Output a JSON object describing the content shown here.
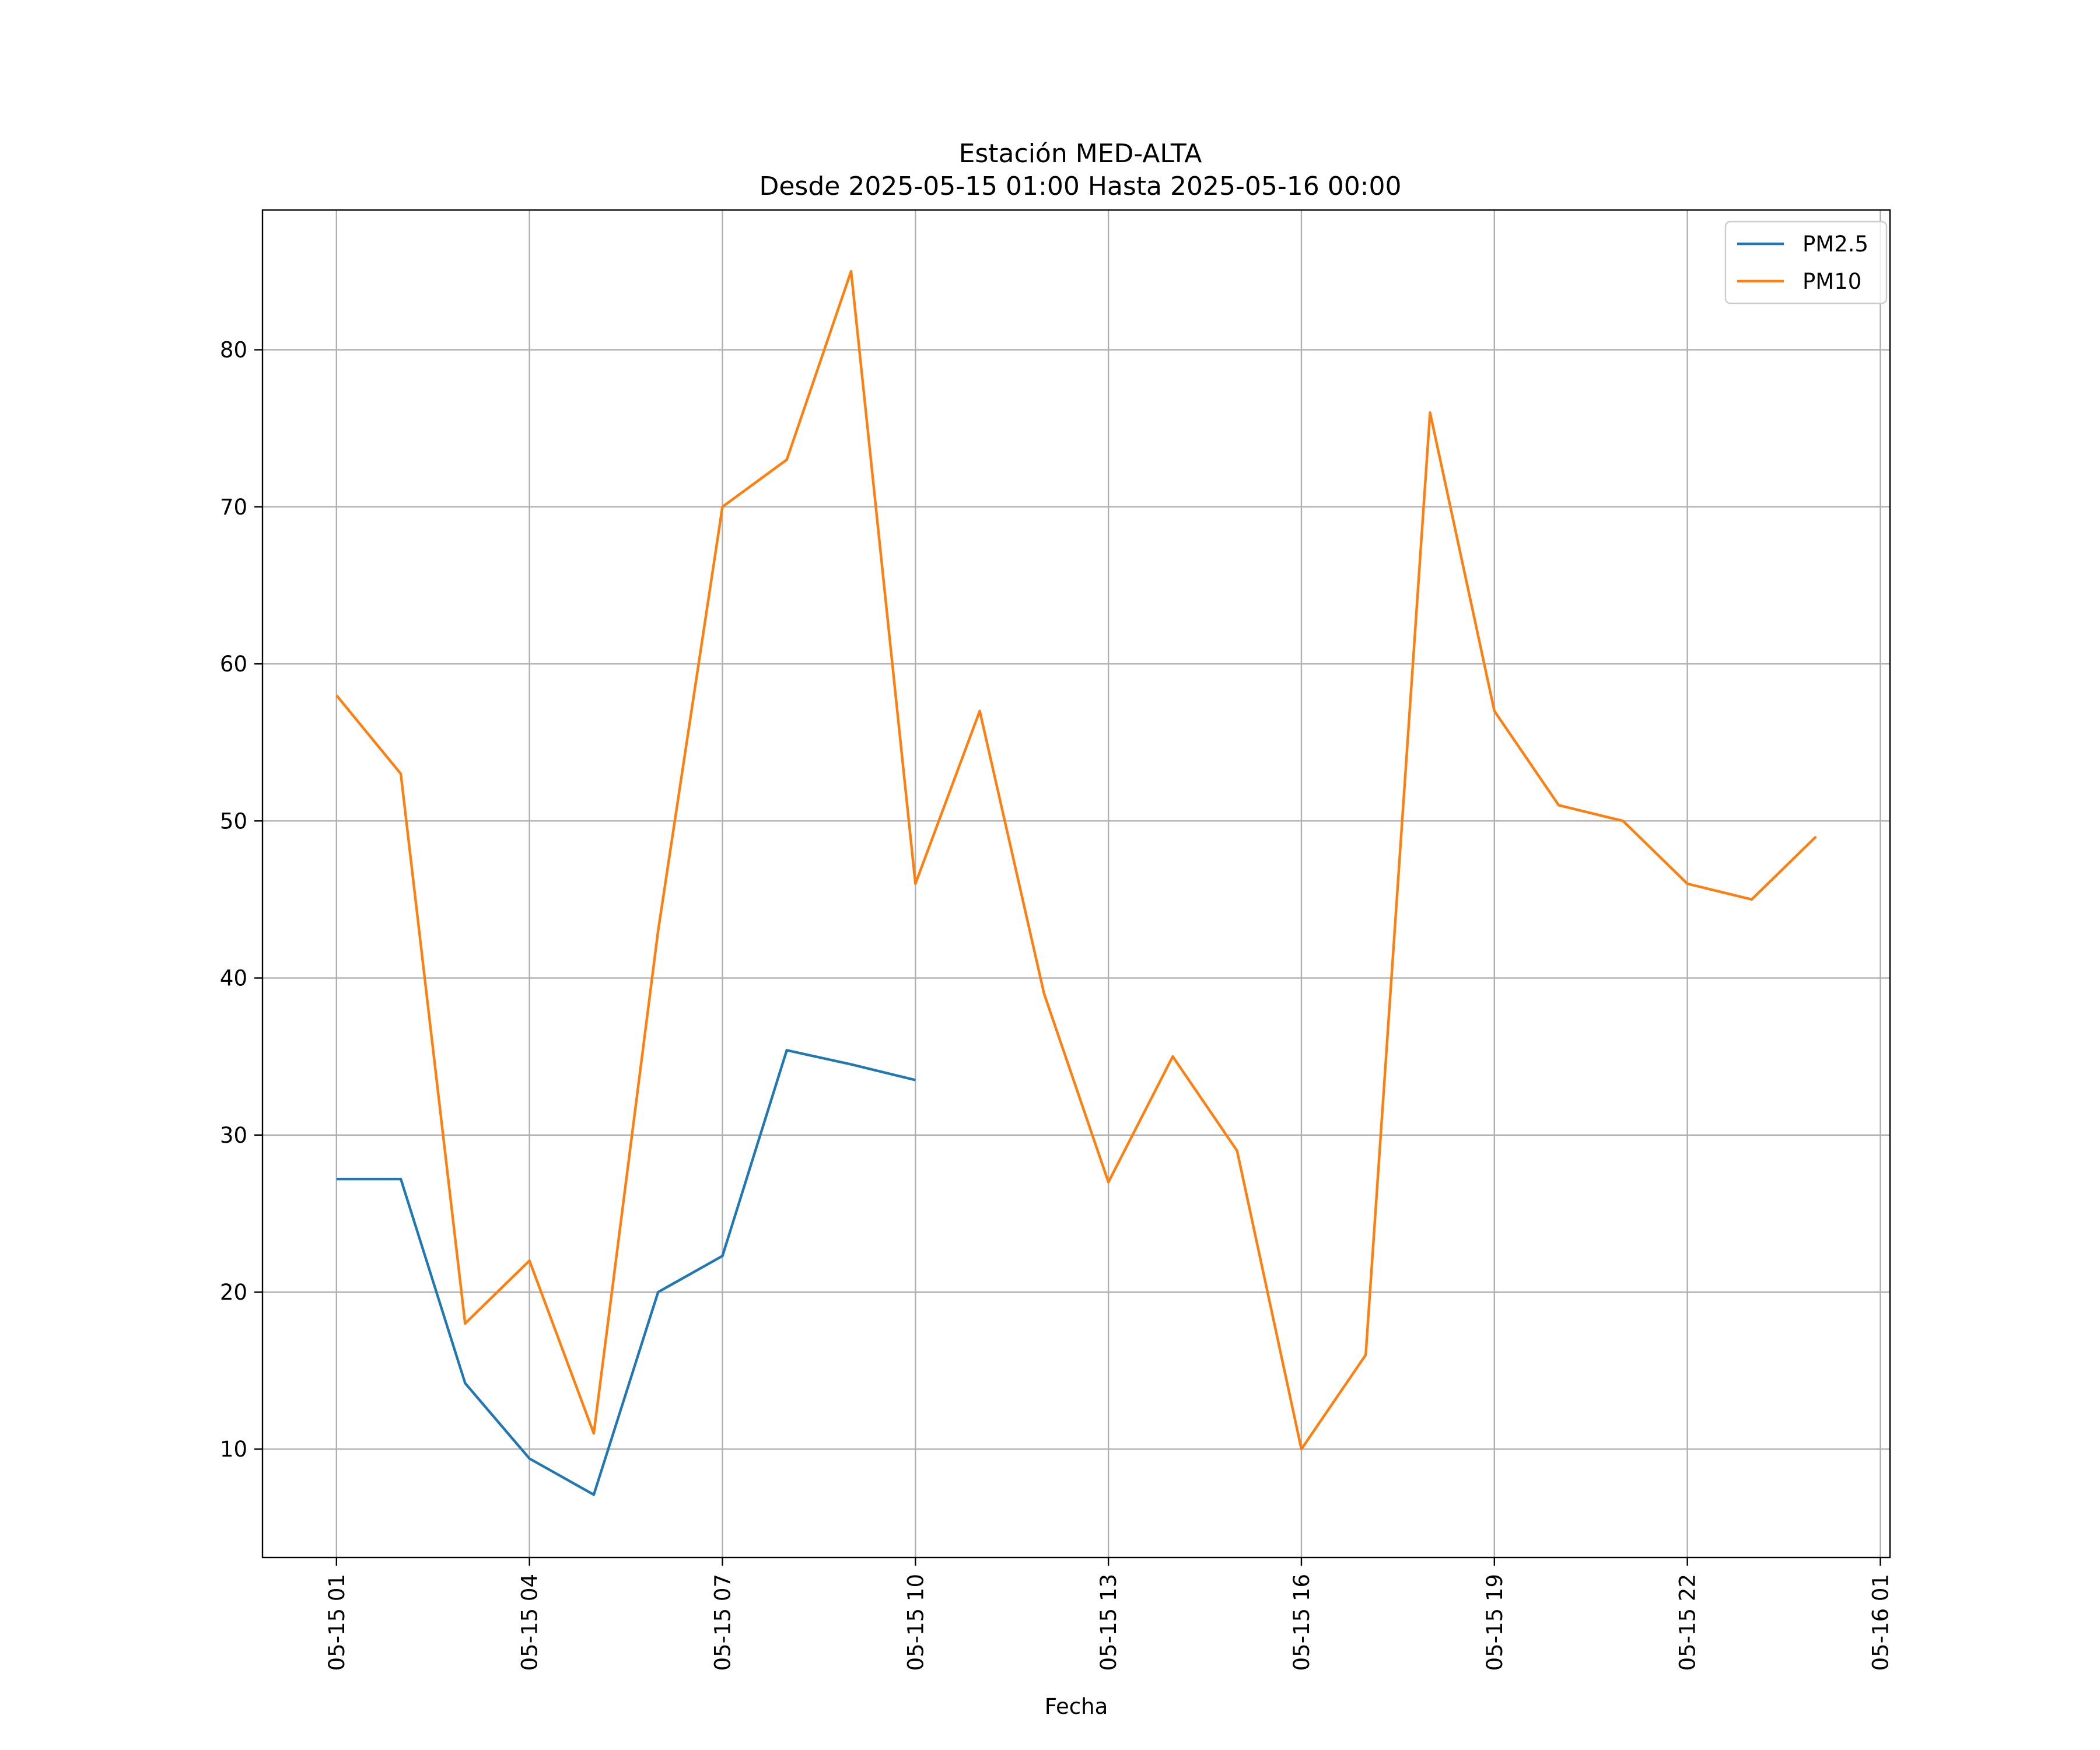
{
  "chart_data": {
    "type": "line",
    "title": "Estación MED-ALTA",
    "subtitle": "Desde 2025-05-15 01:00 Hasta 2025-05-16 00:00",
    "xlabel": "Fecha",
    "ylabel": "",
    "x": [
      "2025-05-15 01:00",
      "2025-05-15 02:00",
      "2025-05-15 03:00",
      "2025-05-15 04:00",
      "2025-05-15 05:00",
      "2025-05-15 06:00",
      "2025-05-15 07:00",
      "2025-05-15 08:00",
      "2025-05-15 09:00",
      "2025-05-15 10:00",
      "2025-05-15 11:00",
      "2025-05-15 12:00",
      "2025-05-15 13:00",
      "2025-05-15 14:00",
      "2025-05-15 15:00",
      "2025-05-15 16:00",
      "2025-05-15 17:00",
      "2025-05-15 18:00",
      "2025-05-15 19:00",
      "2025-05-15 20:00",
      "2025-05-15 21:00",
      "2025-05-15 22:00",
      "2025-05-15 23:00",
      "2025-05-16 00:00"
    ],
    "x_ticks": [
      {
        "value": "2025-05-15 01:00",
        "label": "05-15 01"
      },
      {
        "value": "2025-05-15 04:00",
        "label": "05-15 04"
      },
      {
        "value": "2025-05-15 07:00",
        "label": "05-15 07"
      },
      {
        "value": "2025-05-15 10:00",
        "label": "05-15 10"
      },
      {
        "value": "2025-05-15 13:00",
        "label": "05-15 13"
      },
      {
        "value": "2025-05-15 16:00",
        "label": "05-15 16"
      },
      {
        "value": "2025-05-15 19:00",
        "label": "05-15 19"
      },
      {
        "value": "2025-05-15 22:00",
        "label": "05-15 22"
      },
      {
        "value": "2025-05-16 01:00",
        "label": "05-16 01"
      }
    ],
    "xlim": [
      "2025-05-14 23:51",
      "2025-05-16 01:09"
    ],
    "yticks": [
      10,
      20,
      30,
      40,
      50,
      60,
      70,
      80
    ],
    "ylim": [
      3.1,
      88.9
    ],
    "grid": true,
    "legend": "top-right",
    "series": [
      {
        "name": "PM2.5",
        "color": "#1f77b4",
        "values": [
          27.2,
          27.2,
          14.2,
          9.4,
          7.1,
          20.0,
          22.3,
          35.4,
          34.5,
          33.5,
          null,
          null,
          null,
          null,
          null,
          null,
          null,
          null,
          null,
          null,
          null,
          null,
          null,
          null
        ]
      },
      {
        "name": "PM10",
        "color": "#ff7f0e",
        "values": [
          58,
          53,
          18,
          22,
          11,
          43,
          70,
          73,
          85,
          46,
          57,
          39,
          27,
          35,
          29,
          10,
          16,
          76,
          57,
          51,
          50,
          46,
          45,
          49
        ]
      }
    ]
  }
}
